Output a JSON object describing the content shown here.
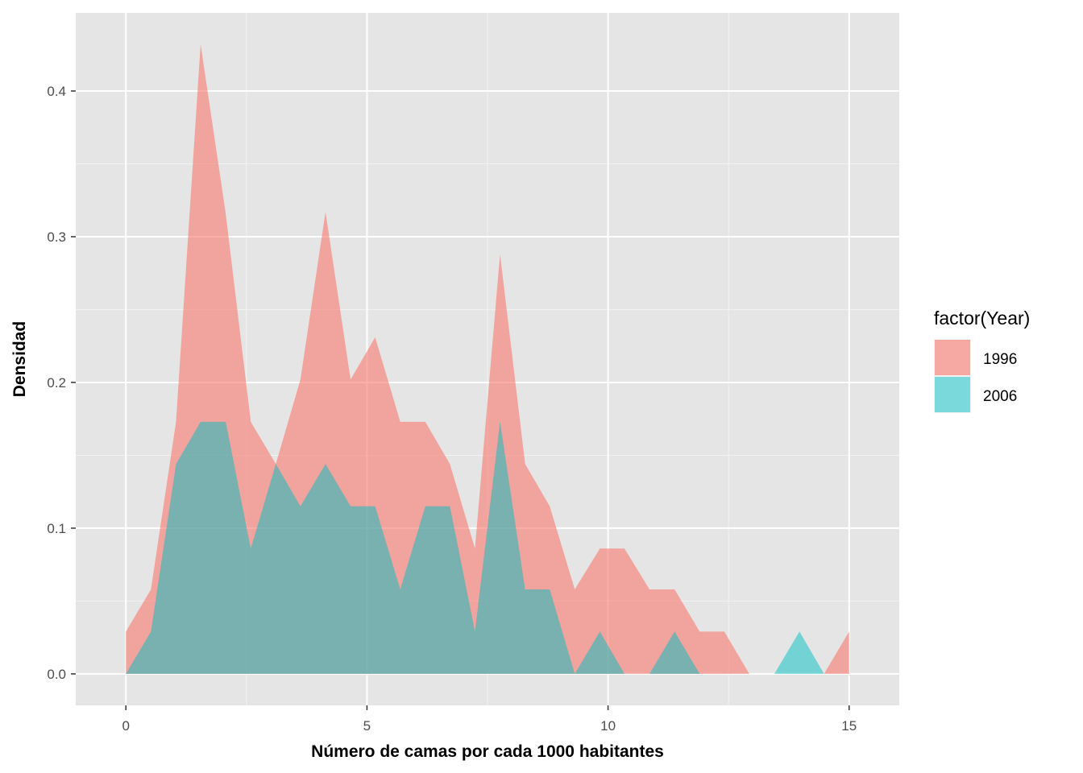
{
  "chart_data": {
    "type": "area",
    "xlabel": "Número de camas por cada 1000 habitantes",
    "ylabel": "Densidad",
    "xlim": [
      -1.04,
      16.04
    ],
    "ylim": [
      -0.0216,
      0.4536
    ],
    "x_ticks": [
      0,
      5,
      10,
      15
    ],
    "x_tick_labels": [
      "0",
      "5",
      "10",
      "15"
    ],
    "y_ticks": [
      0.0,
      0.1,
      0.2,
      0.3,
      0.4
    ],
    "y_tick_labels": [
      "0.0",
      "0.1",
      "0.2",
      "0.3",
      "0.4"
    ],
    "grid": true,
    "legend": {
      "title": "factor(Year)",
      "position": "right",
      "entries": [
        "1996",
        "2006"
      ]
    },
    "series": [
      {
        "name": "1996",
        "color": "#F8766D",
        "opacity": 0.6,
        "points": [
          [
            0.0,
            0.029
          ],
          [
            0.52,
            0.058
          ],
          [
            1.04,
            0.173
          ],
          [
            1.55,
            0.432
          ],
          [
            2.07,
            0.316
          ],
          [
            2.59,
            0.173
          ],
          [
            3.11,
            0.144
          ],
          [
            3.62,
            0.202
          ],
          [
            4.14,
            0.317
          ],
          [
            4.66,
            0.202
          ],
          [
            5.17,
            0.231
          ],
          [
            5.69,
            0.173
          ],
          [
            6.21,
            0.173
          ],
          [
            6.72,
            0.144
          ],
          [
            7.24,
            0.086
          ],
          [
            7.76,
            0.288
          ],
          [
            8.28,
            0.144
          ],
          [
            8.79,
            0.115
          ],
          [
            9.31,
            0.058
          ],
          [
            9.83,
            0.086
          ],
          [
            10.34,
            0.086
          ],
          [
            10.86,
            0.058
          ],
          [
            11.38,
            0.058
          ],
          [
            11.9,
            0.029
          ],
          [
            12.41,
            0.029
          ],
          [
            12.93,
            0.0
          ],
          [
            13.45,
            0.0
          ],
          [
            13.97,
            0.0
          ],
          [
            14.48,
            0.0
          ],
          [
            15.0,
            0.029
          ]
        ]
      },
      {
        "name": "2006",
        "color": "#00BFC4",
        "opacity": 0.5,
        "points": [
          [
            0.0,
            0.0
          ],
          [
            0.52,
            0.029
          ],
          [
            1.04,
            0.144
          ],
          [
            1.55,
            0.173
          ],
          [
            2.07,
            0.173
          ],
          [
            2.59,
            0.086
          ],
          [
            3.11,
            0.144
          ],
          [
            3.62,
            0.115
          ],
          [
            4.14,
            0.144
          ],
          [
            4.66,
            0.115
          ],
          [
            5.17,
            0.115
          ],
          [
            5.69,
            0.058
          ],
          [
            6.21,
            0.115
          ],
          [
            6.72,
            0.115
          ],
          [
            7.24,
            0.029
          ],
          [
            7.76,
            0.173
          ],
          [
            8.28,
            0.058
          ],
          [
            8.79,
            0.058
          ],
          [
            9.31,
            0.0
          ],
          [
            9.83,
            0.029
          ],
          [
            10.34,
            0.0
          ],
          [
            10.86,
            0.0
          ],
          [
            11.38,
            0.029
          ],
          [
            11.9,
            0.0
          ],
          [
            12.41,
            0.0
          ],
          [
            12.93,
            0.0
          ],
          [
            13.45,
            0.0
          ],
          [
            13.97,
            0.029
          ],
          [
            14.48,
            0.0
          ],
          [
            15.0,
            0.0
          ]
        ]
      }
    ]
  }
}
